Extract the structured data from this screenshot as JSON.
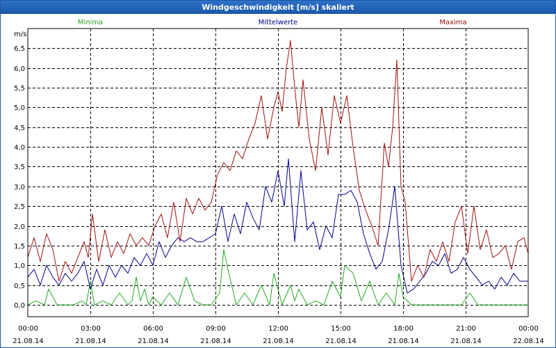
{
  "window": {
    "title": "Windgeschwindigkeit [m/s] skaliert"
  },
  "colors": {
    "minima": "#22aa22",
    "mittel": "#00008b",
    "maxima": "#a01010",
    "grid": "#000000",
    "axis": "#000000"
  },
  "chart_data": {
    "type": "line",
    "title": "Windgeschwindigkeit [m/s] skaliert",
    "ylabel": "m/s",
    "xlabel": "",
    "ylim": [
      -0.3,
      7.0
    ],
    "xlim": [
      0,
      24
    ],
    "grid": true,
    "legend_position": "top",
    "y_ticks": [
      "0,0",
      "0,5",
      "1,0",
      "1,5",
      "2,0",
      "2,5",
      "3,0",
      "3,5",
      "4,0",
      "4,5",
      "5,0",
      "5,5",
      "6,0",
      "6,5"
    ],
    "y_tick_values": [
      0,
      0.5,
      1,
      1.5,
      2,
      2.5,
      3,
      3.5,
      4,
      4.5,
      5,
      5.5,
      6,
      6.5
    ],
    "x_ticks": [
      {
        "value": 0,
        "time": "00:00",
        "date": "21.08.14"
      },
      {
        "value": 3,
        "time": "03:00",
        "date": "21.08.14"
      },
      {
        "value": 6,
        "time": "06:00",
        "date": "21.08.14"
      },
      {
        "value": 9,
        "time": "09:00",
        "date": "21.08.14"
      },
      {
        "value": 12,
        "time": "12:00",
        "date": "21.08.14"
      },
      {
        "value": 15,
        "time": "15:00",
        "date": "21.08.14"
      },
      {
        "value": 18,
        "time": "18:00",
        "date": "21.08.14"
      },
      {
        "value": 21,
        "time": "21:00",
        "date": "21.08.14"
      },
      {
        "value": 24,
        "time": "00:00",
        "date": "22.08.14"
      }
    ],
    "series": [
      {
        "name": "Minima",
        "color": "#22aa22",
        "x": [
          0,
          0.4,
          0.8,
          1,
          1.4,
          1.8,
          2.2,
          2.6,
          2.8,
          3.0,
          3.2,
          3.6,
          4.0,
          4.4,
          4.8,
          5.0,
          5.2,
          5.4,
          5.6,
          5.8,
          6.0,
          6.4,
          6.8,
          7.2,
          7.6,
          8.0,
          8.4,
          8.8,
          9.2,
          9.4,
          9.6,
          10.0,
          10.4,
          10.8,
          11.2,
          11.6,
          11.8,
          12.2,
          12.6,
          12.8,
          13.0,
          13.4,
          13.8,
          14.2,
          14.6,
          15.0,
          15.2,
          15.6,
          16.0,
          16.4,
          16.8,
          17.2,
          17.6,
          17.8,
          18.0,
          18.4,
          18.8,
          19.2,
          19.6,
          20.0,
          20.4,
          20.8,
          21.2,
          21.6,
          22.0,
          22.4,
          22.8,
          23.2,
          23.6,
          24.0
        ],
        "values": [
          0.0,
          0.1,
          0.0,
          0.4,
          0.0,
          0.0,
          0.0,
          0.1,
          0.0,
          0.6,
          0.0,
          0.1,
          0.0,
          0.3,
          0.0,
          0.1,
          0.7,
          0.1,
          0.4,
          0.0,
          0.2,
          0.0,
          0.3,
          0.0,
          0.7,
          0.1,
          0.0,
          0.0,
          0.3,
          1.4,
          0.9,
          0.0,
          0.3,
          0.0,
          0.5,
          0.0,
          0.8,
          0.0,
          0.5,
          0.1,
          0.4,
          0.0,
          0.1,
          0.0,
          0.6,
          0.2,
          1.0,
          0.8,
          0.1,
          0.6,
          0.0,
          0.3,
          0.0,
          0.8,
          0.2,
          0.0,
          0.0,
          0.0,
          0.0,
          0.0,
          0.0,
          0.0,
          0.3,
          0.0,
          0.0,
          0.0,
          0.0,
          0.0,
          0.0,
          0.0
        ]
      },
      {
        "name": "Mittelwerte",
        "color": "#00008b",
        "x": [
          0,
          0.3,
          0.6,
          0.9,
          1.2,
          1.5,
          1.8,
          2.1,
          2.4,
          2.7,
          3.0,
          3.3,
          3.6,
          3.9,
          4.2,
          4.5,
          4.8,
          5.1,
          5.4,
          5.7,
          6.0,
          6.3,
          6.6,
          6.9,
          7.2,
          7.5,
          7.8,
          8.1,
          8.4,
          8.7,
          9.0,
          9.3,
          9.6,
          9.9,
          10.2,
          10.5,
          10.8,
          11.1,
          11.4,
          11.7,
          12.0,
          12.3,
          12.5,
          12.8,
          13.1,
          13.4,
          13.7,
          14.0,
          14.3,
          14.6,
          14.9,
          15.2,
          15.5,
          15.8,
          16.1,
          16.4,
          16.7,
          17.0,
          17.3,
          17.6,
          17.9,
          18.2,
          18.5,
          18.8,
          19.1,
          19.4,
          19.7,
          20.0,
          20.3,
          20.6,
          20.9,
          21.2,
          21.5,
          21.8,
          22.1,
          22.4,
          22.7,
          23.0,
          23.3,
          23.6,
          24.0
        ],
        "values": [
          0.7,
          0.9,
          0.5,
          1.0,
          0.7,
          0.5,
          0.8,
          0.6,
          0.8,
          1.1,
          0.4,
          0.9,
          0.5,
          1.0,
          0.7,
          1.0,
          0.8,
          1.2,
          1.0,
          1.3,
          1.0,
          1.6,
          1.2,
          1.5,
          1.7,
          1.6,
          1.7,
          1.6,
          1.6,
          1.7,
          1.8,
          2.5,
          1.6,
          2.3,
          1.8,
          2.6,
          2.2,
          1.9,
          3.0,
          2.6,
          3.4,
          2.5,
          3.7,
          1.6,
          3.4,
          1.9,
          2.1,
          1.4,
          2.0,
          1.7,
          2.8,
          2.8,
          2.9,
          2.6,
          1.8,
          1.3,
          0.9,
          1.1,
          1.9,
          3.0,
          1.0,
          0.3,
          0.4,
          0.6,
          0.8,
          1.1,
          1.0,
          1.3,
          0.8,
          0.9,
          1.2,
          0.9,
          0.7,
          0.5,
          0.6,
          0.4,
          0.7,
          0.5,
          0.8,
          0.6,
          0.6
        ]
      },
      {
        "name": "Maxima",
        "color": "#a01010",
        "x": [
          0,
          0.3,
          0.6,
          0.9,
          1.2,
          1.5,
          1.8,
          2.1,
          2.4,
          2.7,
          2.9,
          3.1,
          3.4,
          3.7,
          4.0,
          4.3,
          4.6,
          4.9,
          5.2,
          5.5,
          5.8,
          6.1,
          6.4,
          6.7,
          7.0,
          7.3,
          7.6,
          7.9,
          8.2,
          8.5,
          8.8,
          9.1,
          9.4,
          9.7,
          10.0,
          10.3,
          10.6,
          10.9,
          11.2,
          11.5,
          11.8,
          12.0,
          12.2,
          12.4,
          12.6,
          12.8,
          13.0,
          13.2,
          13.5,
          13.8,
          14.1,
          14.4,
          14.7,
          15.0,
          15.3,
          15.6,
          15.9,
          16.2,
          16.5,
          16.8,
          17.1,
          17.3,
          17.5,
          17.7,
          17.9,
          18.1,
          18.4,
          18.7,
          19.0,
          19.3,
          19.6,
          19.9,
          20.2,
          20.5,
          20.8,
          21.1,
          21.4,
          21.7,
          22.0,
          22.3,
          22.6,
          22.9,
          23.2,
          23.5,
          23.8,
          24.0
        ],
        "values": [
          1.2,
          1.7,
          1.1,
          1.8,
          1.4,
          0.6,
          1.1,
          0.8,
          1.2,
          1.6,
          1.2,
          2.3,
          1.1,
          1.9,
          1.2,
          1.6,
          1.3,
          1.8,
          1.5,
          1.7,
          1.5,
          2.0,
          2.3,
          1.7,
          2.6,
          1.6,
          2.7,
          2.3,
          2.7,
          2.4,
          2.6,
          3.3,
          3.6,
          3.4,
          3.9,
          3.7,
          4.2,
          4.6,
          5.3,
          4.2,
          5.0,
          5.4,
          4.9,
          6.0,
          6.7,
          5.5,
          4.5,
          5.7,
          4.2,
          3.4,
          5.0,
          3.8,
          5.3,
          4.6,
          5.3,
          4.0,
          2.9,
          2.4,
          2.0,
          1.5,
          4.1,
          3.5,
          4.5,
          6.2,
          3.0,
          2.6,
          0.6,
          1.0,
          0.7,
          1.4,
          1.1,
          1.6,
          1.1,
          2.1,
          2.5,
          1.3,
          2.5,
          1.4,
          1.9,
          1.2,
          1.3,
          1.5,
          0.9,
          1.6,
          1.7,
          1.3
        ]
      }
    ]
  }
}
